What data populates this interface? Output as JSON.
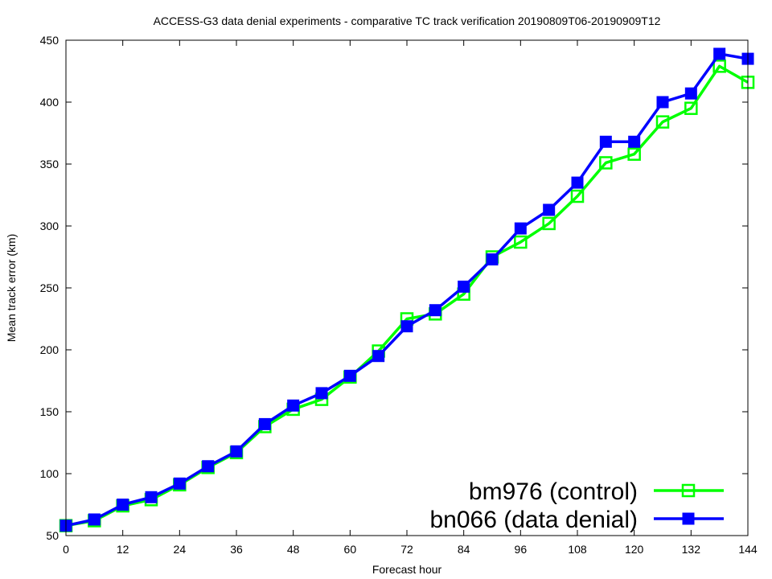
{
  "chart_data": {
    "type": "line",
    "title": "ACCESS-G3 data denial experiments - comparative TC track verification 20190809T06-20190909T12",
    "xlabel": "Forecast hour",
    "ylabel": "Mean track error (km)",
    "xlim": [
      0,
      144
    ],
    "ylim": [
      50,
      450
    ],
    "xticks": [
      0,
      12,
      24,
      36,
      48,
      60,
      72,
      84,
      96,
      108,
      120,
      132,
      144
    ],
    "yticks": [
      50,
      100,
      150,
      200,
      250,
      300,
      350,
      400,
      450
    ],
    "legend_position": "bottom-right",
    "grid": false,
    "x": [
      0,
      6,
      12,
      18,
      24,
      30,
      36,
      42,
      48,
      54,
      60,
      66,
      72,
      78,
      84,
      90,
      96,
      102,
      108,
      114,
      120,
      126,
      132,
      138,
      144
    ],
    "series": [
      {
        "name": "bm976 (control)",
        "color": "#00ff00",
        "marker": "open-square",
        "values": [
          58,
          62,
          74,
          79,
          91,
          105,
          117,
          138,
          152,
          160,
          178,
          199,
          225,
          229,
          245,
          275,
          287,
          302,
          324,
          351,
          358,
          384,
          395,
          429,
          416
        ]
      },
      {
        "name": "bn066 (data denial)",
        "color": "#0000ff",
        "marker": "filled-square",
        "values": [
          58,
          63,
          75,
          81,
          92,
          106,
          118,
          140,
          155,
          165,
          179,
          195,
          219,
          232,
          251,
          273,
          298,
          313,
          335,
          368,
          368,
          400,
          407,
          439,
          435
        ]
      }
    ]
  }
}
